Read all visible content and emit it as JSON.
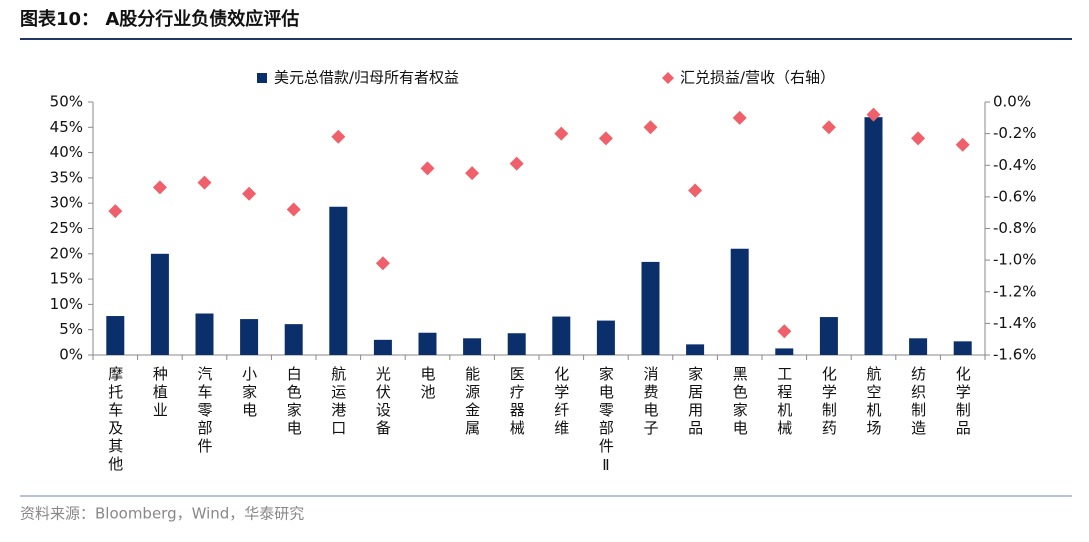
{
  "chart_data": {
    "type": "bar_scatter",
    "title": "图表10： A股分行业负债效应评估",
    "source": "资料来源：Bloomberg，Wind，华泰研究",
    "categories": [
      "摩托车及其他",
      "种植业",
      "汽车零部件",
      "小家电",
      "白色家电",
      "航运港口",
      "光伏设备",
      "电池",
      "能源金属",
      "医疗器械",
      "化学纤维",
      "家电零部件Ⅱ",
      "消费电子",
      "家居用品",
      "黑色家电",
      "工程机械",
      "化学制药",
      "航空机场",
      "纺织制造",
      "化学制品"
    ],
    "series": [
      {
        "name": "美元总借款/归母所有者权益",
        "color": "#0b2f6b",
        "type": "bar",
        "axis": "y",
        "values": [
          7.7,
          20,
          8.2,
          7.1,
          6.1,
          29.3,
          3,
          4.4,
          3.3,
          4.3,
          7.6,
          6.8,
          18.4,
          2.1,
          21,
          1.3,
          7.5,
          47,
          3.3,
          2.7
        ]
      },
      {
        "name": "汇兑损益/营收（右轴）",
        "color": "#f0606a",
        "type": "scatter",
        "axis": "y2",
        "values": [
          -0.69,
          -0.54,
          -0.51,
          -0.58,
          -0.68,
          -0.22,
          -1.02,
          -0.42,
          -0.45,
          -0.39,
          -0.2,
          -0.23,
          -0.16,
          -0.56,
          -0.1,
          -1.45,
          -0.16,
          -0.08,
          -0.23,
          -0.27
        ]
      }
    ],
    "ylim": [
      0,
      50
    ],
    "yticks": [
      {
        "value": 0,
        "label": "0%"
      },
      {
        "value": 5,
        "label": "5%"
      },
      {
        "value": 10,
        "label": "10%"
      },
      {
        "value": 15,
        "label": "15%"
      },
      {
        "value": 20,
        "label": "20%"
      },
      {
        "value": 25,
        "label": "25%"
      },
      {
        "value": 30,
        "label": "30%"
      },
      {
        "value": 35,
        "label": "35%"
      },
      {
        "value": 40,
        "label": "40%"
      },
      {
        "value": 45,
        "label": "45%"
      },
      {
        "value": 50,
        "label": "50%"
      }
    ],
    "y2lim": [
      -1.6,
      0
    ],
    "y2ticks": [
      {
        "value": 0,
        "label": "0.0%"
      },
      {
        "value": -0.2,
        "label": "-0.2%"
      },
      {
        "value": -0.4,
        "label": "-0.4%"
      },
      {
        "value": -0.6,
        "label": "-0.6%"
      },
      {
        "value": -0.8,
        "label": "-0.8%"
      },
      {
        "value": -1,
        "label": "-1.0%"
      },
      {
        "value": -1.2,
        "label": "-1.2%"
      },
      {
        "value": -1.4,
        "label": "-1.4%"
      },
      {
        "value": -1.6,
        "label": "-1.6%"
      }
    ],
    "grid": false
  }
}
